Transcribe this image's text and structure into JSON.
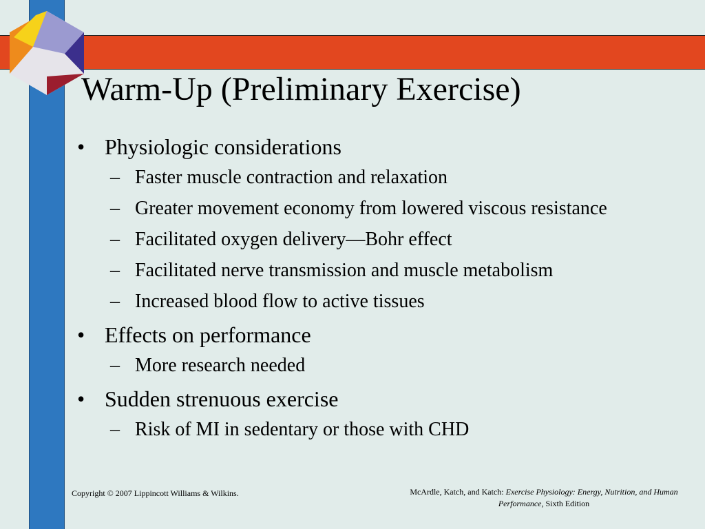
{
  "slide": {
    "title": "Warm-Up (Preliminary Exercise)",
    "bullets": [
      {
        "marker": "•",
        "text": "Physiologic considerations",
        "subs": [
          {
            "marker": "–",
            "text": "Faster muscle contraction and relaxation"
          },
          {
            "marker": "–",
            "text": "Greater movement economy from lowered viscous resistance"
          },
          {
            "marker": "–",
            "text": "Facilitated oxygen delivery—Bohr effect"
          },
          {
            "marker": "–",
            "text": "Facilitated nerve transmission and muscle metabolism"
          },
          {
            "marker": "–",
            "text": "Increased blood flow to active tissues"
          }
        ]
      },
      {
        "marker": "•",
        "text": "Effects on performance",
        "subs": [
          {
            "marker": "–",
            "text": "More research needed"
          }
        ]
      },
      {
        "marker": "•",
        "text": "Sudden strenuous exercise",
        "subs": [
          {
            "marker": "–",
            "text": "Risk of MI in sedentary or those with CHD"
          }
        ]
      }
    ]
  },
  "footer": {
    "copyright": "Copyright © 2007 Lippincott Williams & Wilkins.",
    "citation_authors": "McArdle, Katch, and Katch: ",
    "citation_title": "Exercise Physiology: Energy, Nutrition, and Human Performance,",
    "citation_edition": " Sixth Edition"
  },
  "colors": {
    "background": "#e1ecea",
    "blue_bar": "#2e78c0",
    "red_band": "#e2471f",
    "logo": [
      "#f6d21a",
      "#ee8b1c",
      "#9b9ad0",
      "#3b2f8c",
      "#9b1d2e",
      "#e6e4ea"
    ]
  }
}
